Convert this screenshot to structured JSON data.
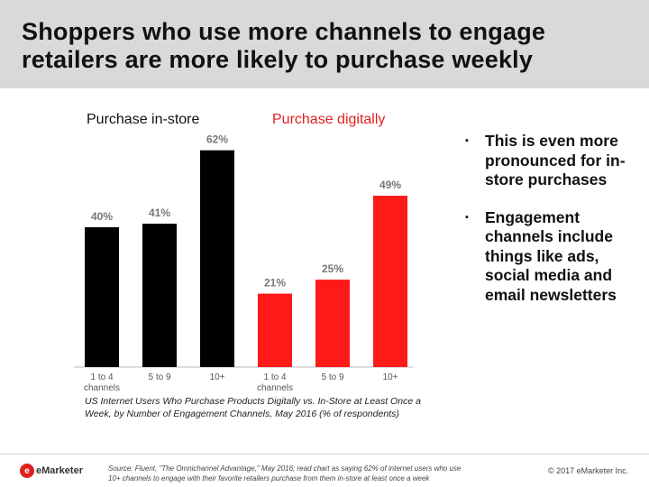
{
  "header": {
    "title_line1": "Shoppers who use more channels to engage",
    "title_line2": "retailers are more likely to purchase weekly"
  },
  "legend": {
    "instore": "Purchase in-store",
    "digital": "Purchase digitally"
  },
  "colors": {
    "instore": "#000000",
    "digital": "#ff1a1a",
    "header_bg": "#d9d9d9"
  },
  "chart_data": {
    "type": "bar",
    "title": "",
    "xlabel": "",
    "ylabel": "",
    "ylim": [
      0,
      65
    ],
    "grid": false,
    "bars": [
      {
        "group": "Purchase in-store",
        "category_line1": "1 to 4",
        "category_line2": "channels",
        "value": 40,
        "label": "40%"
      },
      {
        "group": "Purchase in-store",
        "category_line1": "5 to 9",
        "category_line2": "",
        "value": 41,
        "label": "41%"
      },
      {
        "group": "Purchase in-store",
        "category_line1": "10+",
        "category_line2": "",
        "value": 62,
        "label": "62%"
      },
      {
        "group": "Purchase digitally",
        "category_line1": "1 to 4",
        "category_line2": "channels",
        "value": 21,
        "label": "21%"
      },
      {
        "group": "Purchase digitally",
        "category_line1": "5 to 9",
        "category_line2": "",
        "value": 25,
        "label": "25%"
      },
      {
        "group": "Purchase digitally",
        "category_line1": "10+",
        "category_line2": "",
        "value": 49,
        "label": "49%"
      }
    ]
  },
  "caption": {
    "line1": "US Internet Users Who Purchase Products Digitally vs. In-Store at Least Once a",
    "line2": "Week, by Number of Engagement Channels, May 2016 (% of respondents)"
  },
  "bullets": [
    "This is even more pronounced for in-store purchases",
    "Engagement channels include things like ads, social media and email newsletters"
  ],
  "bullet_marker": "▪",
  "footer": {
    "logo_mark": "e",
    "logo_text": "eMarketer",
    "source_line1": "Source: Fluent, \"The Omnichannel Advantage,\" May 2016; read chart as saying 62% of internet users who use",
    "source_line2": "10+ channels to engage with their favorite retailers purchase from them in-store at least once a week",
    "copyright": "© 2017 eMarketer Inc."
  }
}
